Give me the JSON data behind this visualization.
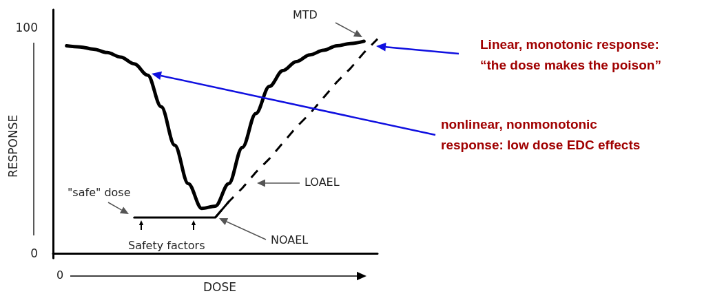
{
  "chart_data": {
    "type": "line",
    "xlabel": "DOSE",
    "ylabel": "RESPONSE",
    "categories": [
      null,
      null,
      null,
      null,
      null,
      null,
      null,
      null,
      null,
      null,
      null,
      null,
      null,
      null,
      null,
      null,
      null,
      null,
      null,
      null,
      null,
      null,
      null,
      null,
      null
    ],
    "ylim": [
      -2,
      108
    ],
    "yticks": [
      0,
      100
    ],
    "marker": "none",
    "series": [
      {
        "color": "#000000",
        "line_style": "solid",
        "values": [
          null,
          92,
          91.5,
          90.5,
          89,
          87,
          84,
          79,
          65,
          48,
          31,
          20,
          21,
          31,
          47,
          62,
          74,
          81,
          85,
          88,
          90,
          92,
          93,
          94,
          null
        ]
      },
      {
        "color": "#000000",
        "line_style": "solid",
        "values": [
          null,
          null,
          null,
          null,
          null,
          null,
          16,
          16,
          16,
          16,
          16,
          16,
          16,
          23,
          null,
          null,
          null,
          null,
          null,
          null,
          null,
          null,
          null,
          null,
          null
        ]
      },
      {
        "color": "#000000",
        "line_style": "dashed",
        "values": [
          null,
          null,
          null,
          null,
          null,
          null,
          null,
          null,
          null,
          null,
          null,
          null,
          16,
          23,
          29,
          36,
          42,
          49,
          56,
          62,
          69,
          76,
          82,
          89,
          95
        ]
      }
    ],
    "annotations": [
      "MTD",
      "LOAEL",
      "NOAEL",
      "\"safe\" dose",
      "Safety factors",
      "Linear, monotonic response:\n“the dose makes the poison”",
      "nonlinear, nonmonotonic\nresponse: low dose EDC effects",
      "0"
    ]
  }
}
